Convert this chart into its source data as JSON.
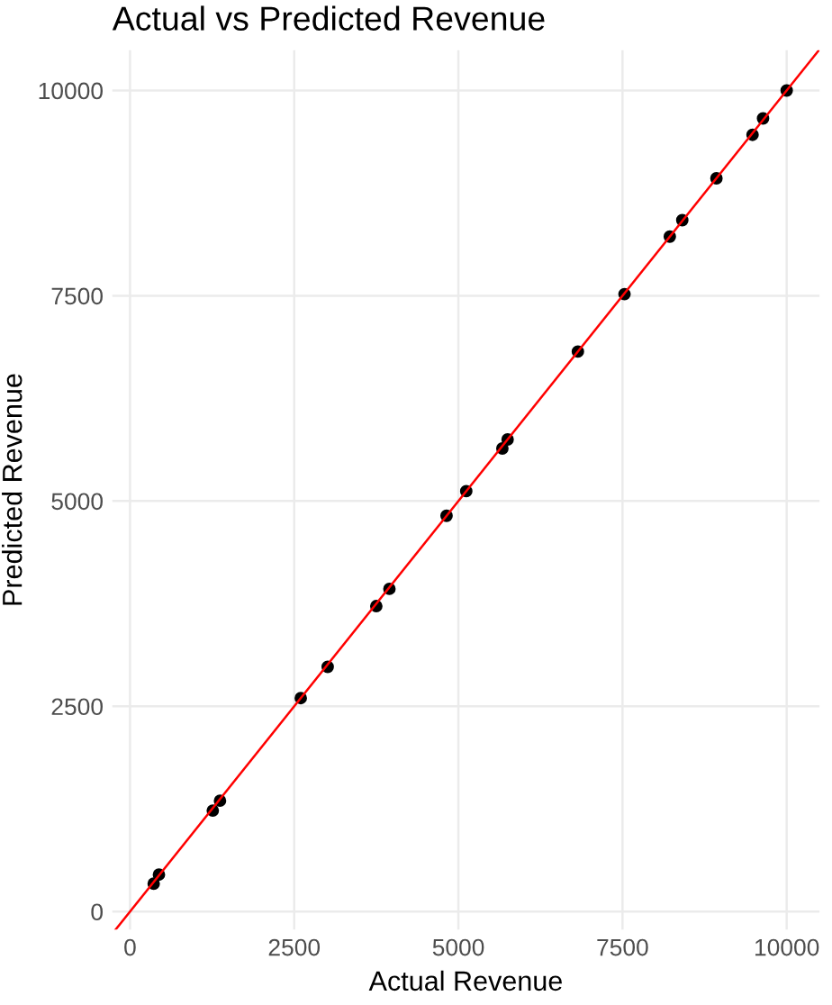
{
  "chart_data": {
    "type": "scatter",
    "title": "Actual vs Predicted Revenue",
    "xlabel": "Actual Revenue",
    "ylabel": "Predicted Revenue",
    "xlim": [
      -270,
      10500
    ],
    "ylim": [
      -220,
      10490
    ],
    "xticks": [
      0,
      2500,
      5000,
      7500,
      10000
    ],
    "yticks": [
      0,
      2500,
      5000,
      7500,
      10000
    ],
    "grid": true,
    "series": [
      {
        "marker": "circle",
        "color": "#000000",
        "x": [
          360,
          440,
          1260,
          1370,
          2600,
          3010,
          3750,
          3950,
          4820,
          5120,
          5670,
          5750,
          6820,
          7530,
          8220,
          8410,
          8930,
          9480,
          9640,
          10000
        ],
        "values": [
          340,
          450,
          1230,
          1350,
          2600,
          2980,
          3720,
          3930,
          4820,
          5120,
          5640,
          5750,
          6820,
          7520,
          8220,
          8420,
          8930,
          9460,
          9660,
          10000
        ]
      },
      {
        "type": "line",
        "color": "#ff0000",
        "x": [
          -220,
          10490
        ],
        "values": [
          -220,
          10490
        ]
      }
    ]
  }
}
